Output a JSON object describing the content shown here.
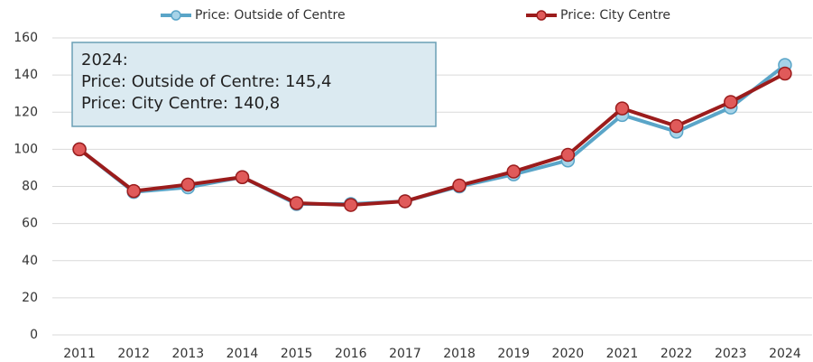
{
  "chart_data": {
    "type": "line",
    "categories": [
      "2011",
      "2012",
      "2013",
      "2014",
      "2015",
      "2016",
      "2017",
      "2018",
      "2019",
      "2020",
      "2021",
      "2022",
      "2023",
      "2024"
    ],
    "series": [
      {
        "name": "Price: Outside of Centre",
        "color": "#5aa5c8",
        "marker_color": "#a6d3e8",
        "values": [
          100,
          77,
          79.5,
          85,
          70.5,
          70.5,
          72,
          80,
          86.5,
          94,
          118.5,
          109.5,
          122.5,
          145.4
        ]
      },
      {
        "name": "Price: City Centre",
        "color": "#9b1c1c",
        "marker_color": "#e05a5a",
        "values": [
          100,
          77.5,
          81,
          85,
          71,
          70,
          72,
          80.5,
          88,
          97,
          122,
          112.5,
          125.5,
          140.8
        ]
      }
    ],
    "ylim": [
      0,
      160
    ],
    "yticks": [
      0,
      20,
      40,
      60,
      80,
      100,
      120,
      140,
      160
    ],
    "grid": true,
    "legend": "top",
    "tooltip": {
      "title": "2024:",
      "lines": [
        "Price: Outside of Centre: 145,4",
        "Price: City Centre: 140,8"
      ]
    }
  }
}
